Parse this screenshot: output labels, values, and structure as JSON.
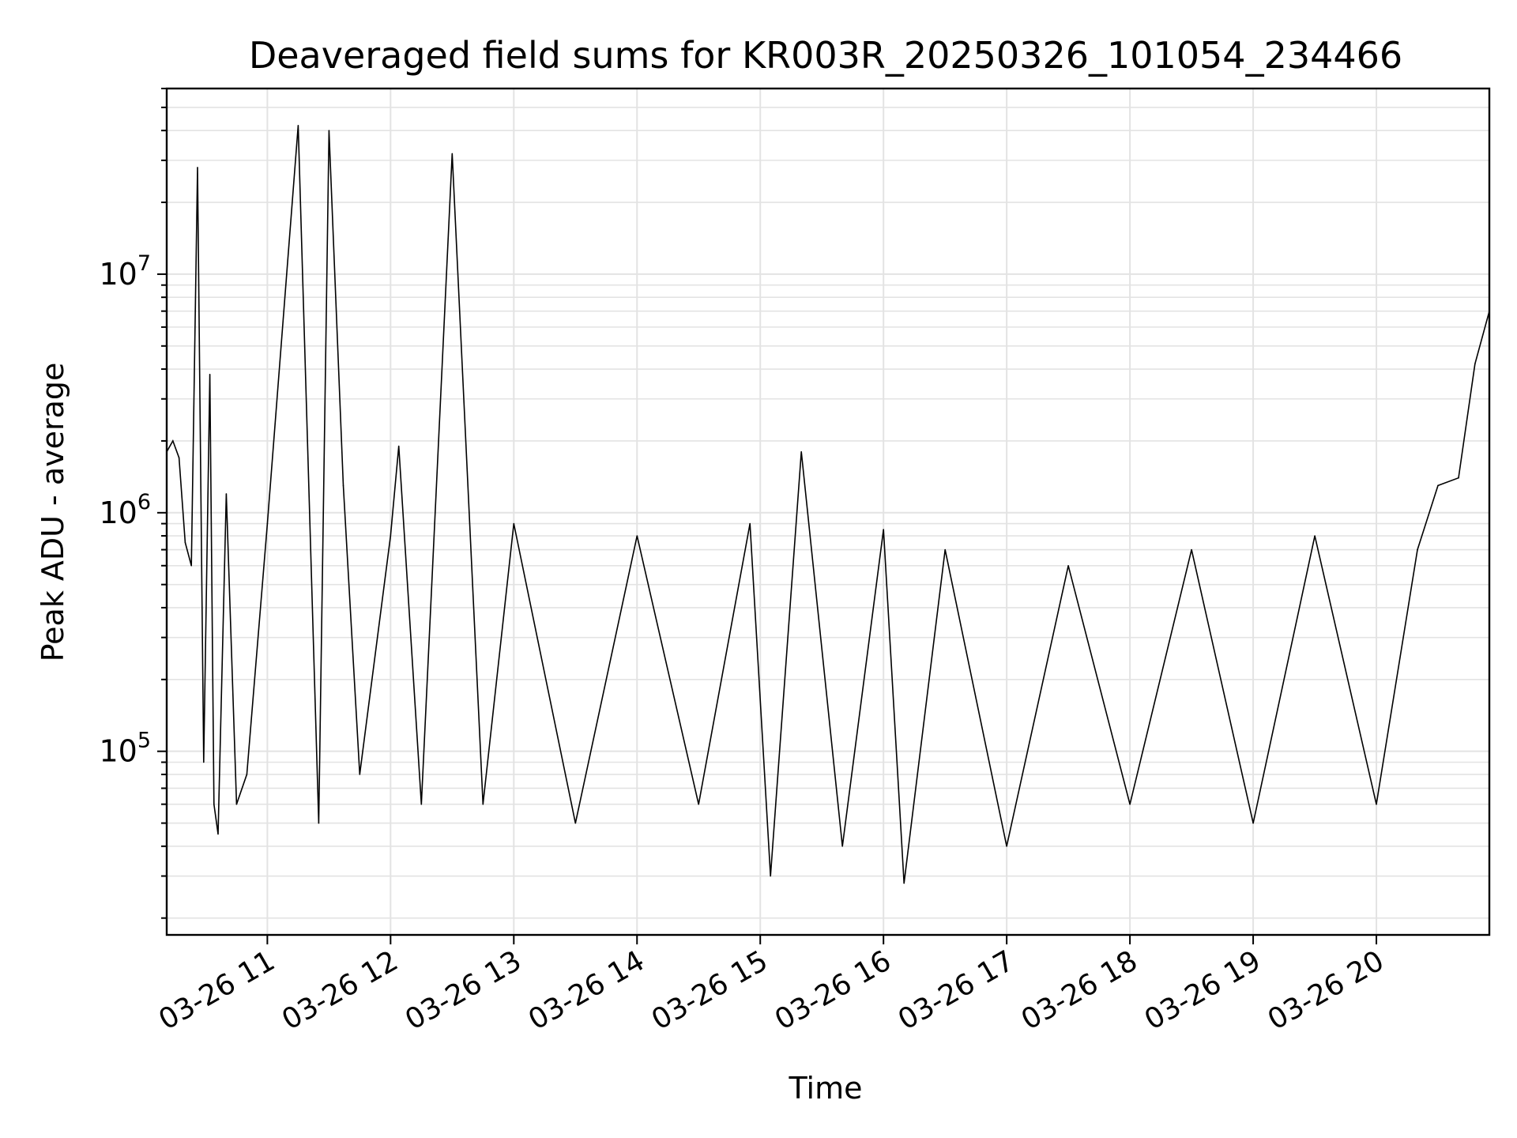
{
  "chart_data": {
    "type": "line",
    "title": "Deaveraged field sums for KR003R_20250326_101054_234466",
    "xlabel": "Time",
    "ylabel": "Peak ADU - average",
    "yscale": "log",
    "ylim": [
      17000,
      60000000
    ],
    "xlim": [
      "2025-03-26T10:11",
      "2025-03-26T20:55"
    ],
    "grid": true,
    "line_color": "#000000",
    "x_ticks": [
      {
        "label": "03-26 11",
        "value": "2025-03-26T11:00"
      },
      {
        "label": "03-26 12",
        "value": "2025-03-26T12:00"
      },
      {
        "label": "03-26 13",
        "value": "2025-03-26T13:00"
      },
      {
        "label": "03-26 14",
        "value": "2025-03-26T14:00"
      },
      {
        "label": "03-26 15",
        "value": "2025-03-26T15:00"
      },
      {
        "label": "03-26 16",
        "value": "2025-03-26T16:00"
      },
      {
        "label": "03-26 17",
        "value": "2025-03-26T17:00"
      },
      {
        "label": "03-26 18",
        "value": "2025-03-26T18:00"
      },
      {
        "label": "03-26 19",
        "value": "2025-03-26T19:00"
      },
      {
        "label": "03-26 20",
        "value": "2025-03-26T20:00"
      }
    ],
    "y_ticks": [
      {
        "base": "10",
        "exp": "5",
        "value": 100000
      },
      {
        "base": "10",
        "exp": "6",
        "value": 1000000
      },
      {
        "base": "10",
        "exp": "7",
        "value": 10000000
      }
    ],
    "series": [
      {
        "x": [
          "2025-03-26T10:11",
          "2025-03-26T10:14",
          "2025-03-26T10:17",
          "2025-03-26T10:20",
          "2025-03-26T10:23",
          "2025-03-26T10:26",
          "2025-03-26T10:29",
          "2025-03-26T10:32",
          "2025-03-26T10:34",
          "2025-03-26T10:36",
          "2025-03-26T10:40",
          "2025-03-26T10:45",
          "2025-03-26T10:50",
          "2025-03-26T11:00",
          "2025-03-26T11:15",
          "2025-03-26T11:25",
          "2025-03-26T11:30",
          "2025-03-26T11:37",
          "2025-03-26T11:45",
          "2025-03-26T12:00",
          "2025-03-26T12:04",
          "2025-03-26T12:15",
          "2025-03-26T12:30",
          "2025-03-26T12:45",
          "2025-03-26T13:00",
          "2025-03-26T13:30",
          "2025-03-26T14:00",
          "2025-03-26T14:30",
          "2025-03-26T14:55",
          "2025-03-26T15:05",
          "2025-03-26T15:20",
          "2025-03-26T15:40",
          "2025-03-26T16:00",
          "2025-03-26T16:10",
          "2025-03-26T16:30",
          "2025-03-26T17:00",
          "2025-03-26T17:30",
          "2025-03-26T18:00",
          "2025-03-26T18:30",
          "2025-03-26T19:00",
          "2025-03-26T19:30",
          "2025-03-26T20:00",
          "2025-03-26T20:20",
          "2025-03-26T20:30",
          "2025-03-26T20:40",
          "2025-03-26T20:48",
          "2025-03-26T20:55"
        ],
        "y": [
          1800000,
          2000000,
          1700000,
          750000,
          600000,
          28000000,
          90000,
          3800000,
          60000,
          45000,
          1200000,
          60000,
          80000,
          900000,
          42000000,
          50000,
          40000000,
          1300000,
          80000,
          800000,
          1900000,
          60000,
          32000000,
          60000,
          900000,
          50000,
          800000,
          60000,
          900000,
          30000,
          1800000,
          40000,
          850000,
          28000,
          700000,
          40000,
          600000,
          60000,
          700000,
          50000,
          800000,
          60000,
          700000,
          1300000,
          1400000,
          4200000,
          7000000
        ]
      }
    ]
  }
}
